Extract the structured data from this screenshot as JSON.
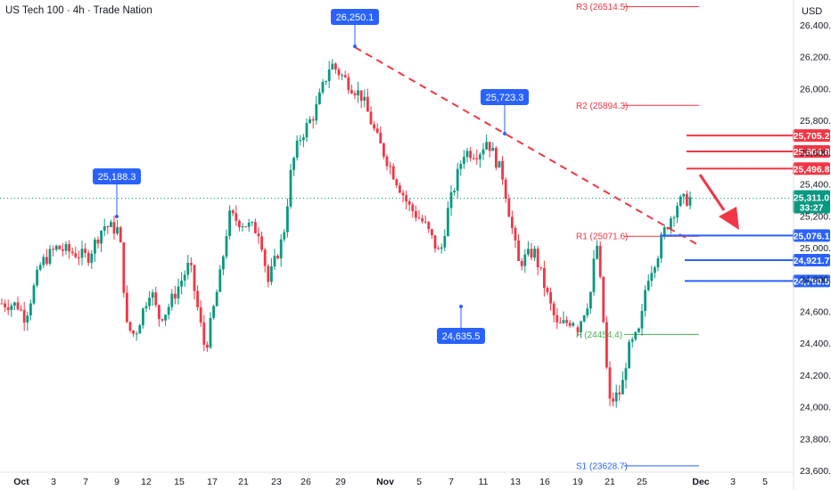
{
  "header": {
    "title": "US Tech 100 · 4h · Trade Nation",
    "currency": "USD"
  },
  "colors": {
    "up": "#089981",
    "down": "#f23645",
    "trendline": "#f23645",
    "callout": "#2962ff",
    "support": "#2962ff",
    "resistance": "#f23645",
    "pivot_red": "#f23645",
    "pivot_green": "#4caf50",
    "pivot_blue": "#2962ff",
    "current": "#089981",
    "arrow": "#f23645"
  },
  "chart_data": {
    "type": "candlestick",
    "ylim": [
      23600,
      26600
    ],
    "y_ticks": [
      23600,
      23800,
      24000,
      24200,
      24400,
      24600,
      24800,
      25000,
      25200,
      25400,
      25600,
      25800,
      26000,
      26200,
      26400
    ],
    "y_tick_labels": [
      "23,600.0",
      "23,800.0",
      "24,000.0",
      "24,200.0",
      "24,400.0",
      "24,600.0",
      "24,800.0",
      "25,000.0",
      "25,200.0",
      "25,400.0",
      "25,600.0",
      "25,800.0",
      "26,000.0",
      "26,200.0",
      "26,400.0"
    ],
    "x_range": [
      0,
      73
    ],
    "x_ticks": [
      {
        "x": 1.3,
        "label": "Oct"
      },
      {
        "x": 5.5,
        "label": "3"
      },
      {
        "x": 9.6,
        "label": "7"
      },
      {
        "x": 13.8,
        "label": "9"
      },
      {
        "x": 18,
        "label": "12"
      },
      {
        "x": 22.2,
        "label": "15"
      },
      {
        "x": 26.4,
        "label": "17"
      },
      {
        "x": 30.6,
        "label": "21"
      },
      {
        "x": 34.7,
        "label": "23"
      },
      {
        "x": 38.9,
        "label": "26"
      },
      {
        "x": 43.1,
        "label": "29"
      },
      {
        "x": 48.3,
        "label": "Nov"
      },
      {
        "x": 52.5,
        "label": "5"
      },
      {
        "x": 56.7,
        "label": "7"
      },
      {
        "x": 60.8,
        "label": "11"
      },
      {
        "x": 65,
        "label": "13"
      },
      {
        "x": 69.2,
        "label": "16"
      },
      {
        "x": 73.4,
        "label": "19"
      }
    ],
    "x_ticks_extra": [
      {
        "label": "21"
      },
      {
        "label": "25"
      },
      {
        "label": "Dec"
      },
      {
        "label": "3"
      },
      {
        "label": "5"
      }
    ],
    "anchors": [
      {
        "x": 0,
        "price": 24650
      },
      {
        "x": 2,
        "price": 24640
      },
      {
        "x": 3,
        "price": 24560
      },
      {
        "x": 5,
        "price": 24900
      },
      {
        "x": 7,
        "price": 25000
      },
      {
        "x": 9,
        "price": 24970
      },
      {
        "x": 11,
        "price": 24940
      },
      {
        "x": 13,
        "price": 25140
      },
      {
        "x": 15,
        "price": 25110
      },
      {
        "x": 16,
        "price": 24500
      },
      {
        "x": 17,
        "price": 24450
      },
      {
        "x": 19,
        "price": 24750
      },
      {
        "x": 20,
        "price": 24560
      },
      {
        "x": 21,
        "price": 24600
      },
      {
        "x": 22,
        "price": 24700
      },
      {
        "x": 24,
        "price": 24900
      },
      {
        "x": 26,
        "price": 24350
      },
      {
        "x": 28,
        "price": 24850
      },
      {
        "x": 29,
        "price": 25200
      },
      {
        "x": 31,
        "price": 25150
      },
      {
        "x": 33,
        "price": 25100
      },
      {
        "x": 34,
        "price": 24780
      },
      {
        "x": 36,
        "price": 25080
      },
      {
        "x": 37,
        "price": 25500
      },
      {
        "x": 38,
        "price": 25680
      },
      {
        "x": 40,
        "price": 25850
      },
      {
        "x": 42,
        "price": 26160
      },
      {
        "x": 44,
        "price": 26050
      },
      {
        "x": 46,
        "price": 25950
      },
      {
        "x": 48,
        "price": 25680
      },
      {
        "x": 50,
        "price": 25470
      },
      {
        "x": 52,
        "price": 25260
      },
      {
        "x": 54,
        "price": 25150
      },
      {
        "x": 56,
        "price": 24950
      },
      {
        "x": 57,
        "price": 25230
      },
      {
        "x": 59,
        "price": 25600
      },
      {
        "x": 61,
        "price": 25600
      },
      {
        "x": 62,
        "price": 25680
      },
      {
        "x": 64,
        "price": 25450
      },
      {
        "x": 66,
        "price": 24900
      },
      {
        "x": 68,
        "price": 24980
      },
      {
        "x": 70,
        "price": 24650
      },
      {
        "x": 71,
        "price": 24500
      },
      {
        "x": 73,
        "price": 24550
      }
    ],
    "x_late": {
      "note": "late-November section drawn on a compressed scale",
      "anchors": [
        {
          "x": 0,
          "price": 24500
        },
        {
          "x": 2,
          "price": 24700
        },
        {
          "x": 3,
          "price": 25050
        },
        {
          "x": 4,
          "price": 24600
        },
        {
          "x": 5,
          "price": 24020
        },
        {
          "x": 7,
          "price": 24100
        },
        {
          "x": 8,
          "price": 24350
        },
        {
          "x": 10,
          "price": 24480
        },
        {
          "x": 11,
          "price": 24800
        },
        {
          "x": 13,
          "price": 24980
        },
        {
          "x": 14,
          "price": 25120
        },
        {
          "x": 16,
          "price": 25280
        },
        {
          "x": 18,
          "price": 25311
        }
      ]
    },
    "callouts": [
      {
        "label": "25,188.3",
        "price": 25188.3
      },
      {
        "label": "26,250.1",
        "price": 26250.1
      },
      {
        "label": "25,723.3",
        "price": 25723.3
      },
      {
        "label": "24,635.5",
        "price": 24635.5
      }
    ],
    "pivots": [
      {
        "label": "R3 (26514.5)",
        "price": 26514.5,
        "color": "#f23645"
      },
      {
        "label": "R2 (25894.3)",
        "price": 25894.3,
        "color": "#f23645"
      },
      {
        "label": "R1 (25071.6)",
        "price": 25071.6,
        "color": "#f23645"
      },
      {
        "label": "P (24454.4)",
        "price": 24454.4,
        "color": "#4caf50"
      },
      {
        "label": "S1 (23628.7)",
        "price": 23628.7,
        "color": "#2962ff"
      }
    ],
    "resistance_levels": [
      {
        "label": "25,705.2",
        "price": 25705.2
      },
      {
        "label": "25,604.8",
        "price": 25604.8
      },
      {
        "label": "25,496.8",
        "price": 25496.8
      }
    ],
    "support_levels": [
      {
        "label": "25,076.1",
        "price": 25076.1
      },
      {
        "label": "24,921.7",
        "price": 24921.7
      },
      {
        "label": "24,790.5",
        "price": 24790.5
      }
    ],
    "current_price": {
      "label": "25,311.0",
      "countdown": "33:27",
      "price": 25311.0
    },
    "trendline": {
      "from_price": 26260,
      "to_price": 25020
    }
  }
}
